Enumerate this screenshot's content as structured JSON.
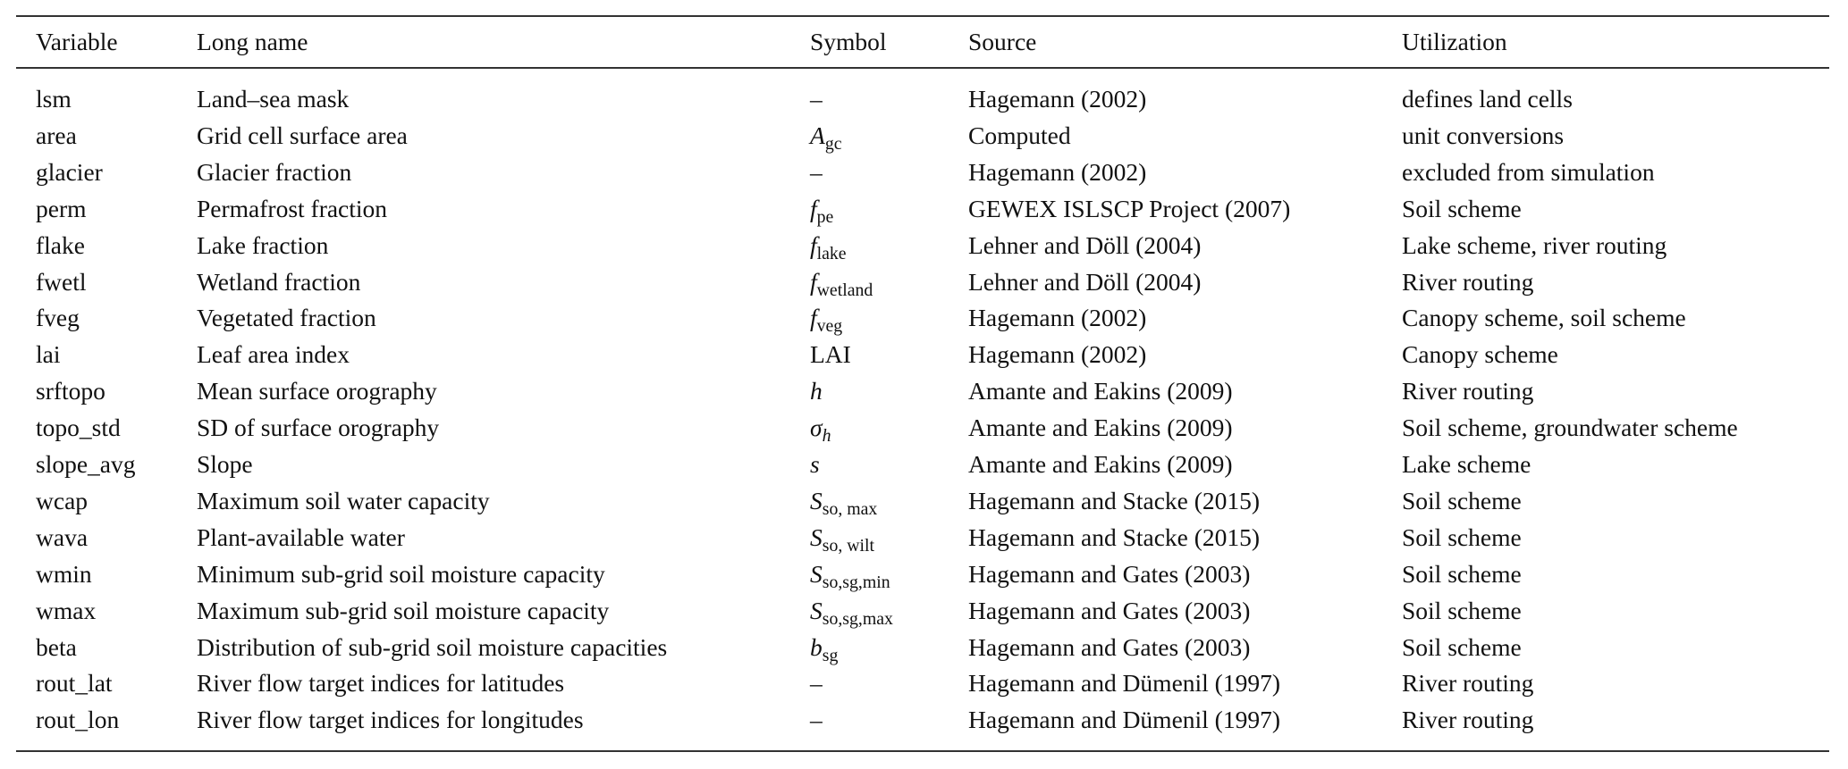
{
  "table": {
    "headers": [
      "Variable",
      "Long name",
      "Symbol",
      "Source",
      "Utilization"
    ],
    "rows": [
      {
        "variable": "lsm",
        "long_name": "Land–sea mask",
        "symbol": {
          "base": "–",
          "base_italic": false,
          "sub": ""
        },
        "source": "Hagemann (2002)",
        "utilization": "defines land cells"
      },
      {
        "variable": "area",
        "long_name": "Grid cell surface area",
        "symbol": {
          "base": "A",
          "base_italic": true,
          "sub": "gc"
        },
        "source": "Computed",
        "utilization": "unit conversions"
      },
      {
        "variable": "glacier",
        "long_name": "Glacier fraction",
        "symbol": {
          "base": "–",
          "base_italic": false,
          "sub": ""
        },
        "source": "Hagemann (2002)",
        "utilization": "excluded from simulation"
      },
      {
        "variable": "perm",
        "long_name": "Permafrost fraction",
        "symbol": {
          "base": "f",
          "base_italic": true,
          "sub": "pe"
        },
        "source": "GEWEX ISLSCP Project (2007)",
        "utilization": "Soil scheme"
      },
      {
        "variable": "flake",
        "long_name": "Lake fraction",
        "symbol": {
          "base": "f",
          "base_italic": true,
          "sub": "lake"
        },
        "source": "Lehner and Döll (2004)",
        "utilization": "Lake scheme, river routing"
      },
      {
        "variable": "fwetl",
        "long_name": "Wetland fraction",
        "symbol": {
          "base": "f",
          "base_italic": true,
          "sub": "wetland"
        },
        "source": "Lehner and Döll (2004)",
        "utilization": "River routing"
      },
      {
        "variable": "fveg",
        "long_name": "Vegetated fraction",
        "symbol": {
          "base": "f",
          "base_italic": true,
          "sub": "veg"
        },
        "source": "Hagemann (2002)",
        "utilization": "Canopy scheme, soil scheme"
      },
      {
        "variable": "lai",
        "long_name": "Leaf area index",
        "symbol": {
          "base": "LAI",
          "base_italic": false,
          "sub": ""
        },
        "source": "Hagemann (2002)",
        "utilization": "Canopy scheme"
      },
      {
        "variable": "srftopo",
        "long_name": "Mean surface orography",
        "symbol": {
          "base": "h",
          "base_italic": true,
          "sub": ""
        },
        "source": "Amante and Eakins (2009)",
        "utilization": "River routing"
      },
      {
        "variable": "topo_std",
        "long_name": "SD of surface orography",
        "symbol": {
          "base": "σ",
          "base_italic": true,
          "sub": "h",
          "sub_italic": true
        },
        "source": "Amante and Eakins (2009)",
        "utilization": "Soil scheme, groundwater scheme"
      },
      {
        "variable": "slope_avg",
        "long_name": "Slope",
        "symbol": {
          "base": "s",
          "base_italic": true,
          "sub": ""
        },
        "source": "Amante and Eakins (2009)",
        "utilization": "Lake scheme"
      },
      {
        "variable": "wcap",
        "long_name": "Maximum soil water capacity",
        "symbol": {
          "base": "S",
          "base_italic": true,
          "sub": "so, max"
        },
        "source": "Hagemann and Stacke (2015)",
        "utilization": "Soil scheme"
      },
      {
        "variable": "wava",
        "long_name": "Plant-available water",
        "symbol": {
          "base": "S",
          "base_italic": true,
          "sub": "so, wilt"
        },
        "source": "Hagemann and Stacke (2015)",
        "utilization": "Soil scheme"
      },
      {
        "variable": "wmin",
        "long_name": "Minimum sub-grid soil moisture capacity",
        "symbol": {
          "base": "S",
          "base_italic": true,
          "sub": "so,sg,min"
        },
        "source": "Hagemann and Gates (2003)",
        "utilization": "Soil scheme"
      },
      {
        "variable": "wmax",
        "long_name": "Maximum sub-grid soil moisture capacity",
        "symbol": {
          "base": "S",
          "base_italic": true,
          "sub": "so,sg,max"
        },
        "source": "Hagemann and Gates (2003)",
        "utilization": "Soil scheme"
      },
      {
        "variable": "beta",
        "long_name": "Distribution of sub-grid soil moisture capacities",
        "symbol": {
          "base": "b",
          "base_italic": true,
          "sub": "sg"
        },
        "source": "Hagemann and Gates (2003)",
        "utilization": "Soil scheme"
      },
      {
        "variable": "rout_lat",
        "long_name": "River flow target indices for latitudes",
        "symbol": {
          "base": "–",
          "base_italic": false,
          "sub": ""
        },
        "source": "Hagemann and Dümenil (1997)",
        "utilization": "River routing"
      },
      {
        "variable": "rout_lon",
        "long_name": "River flow target indices for longitudes",
        "symbol": {
          "base": "–",
          "base_italic": false,
          "sub": ""
        },
        "source": "Hagemann and Dümenil (1997)",
        "utilization": "River routing"
      }
    ]
  }
}
